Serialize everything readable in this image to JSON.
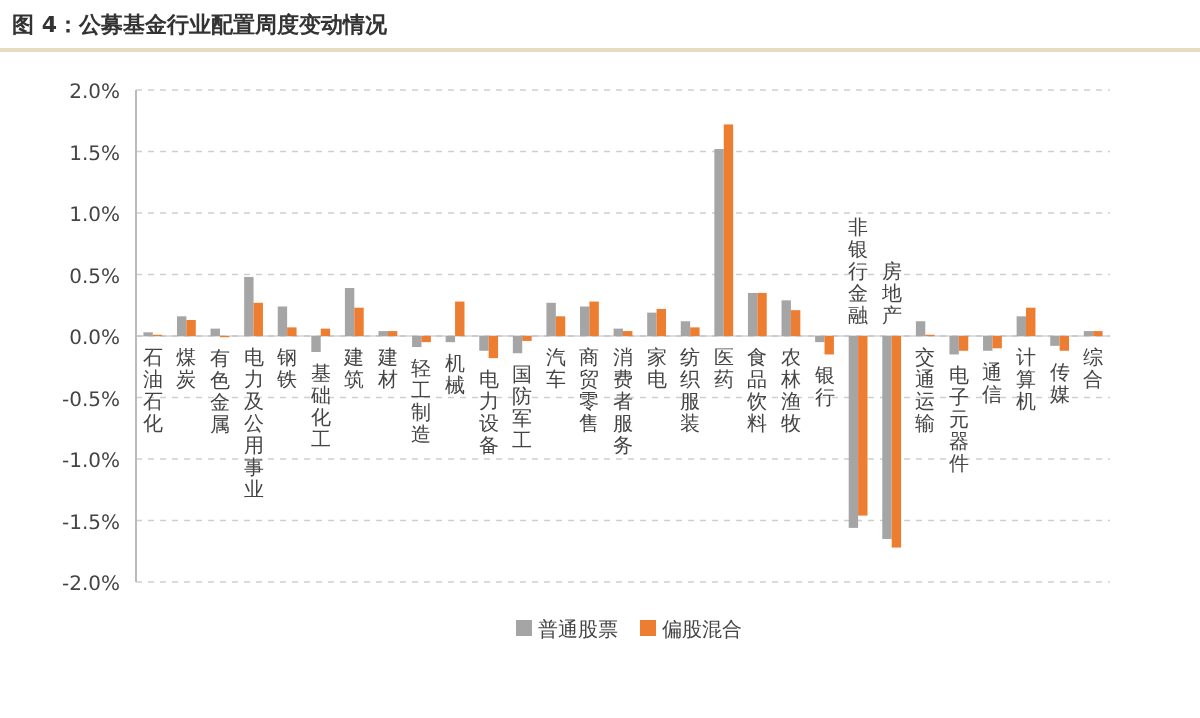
{
  "chart_data": {
    "type": "bar",
    "title": "图 4：公募基金行业配置周度变动情况",
    "categories": [
      "石油石化",
      "煤炭",
      "有色金属",
      "电力及公用事业",
      "钢铁",
      "基础化工",
      "建筑",
      "建材",
      "轻工制造",
      "机械",
      "电力设备",
      "国防军工",
      "汽车",
      "商贸零售",
      "消费者服务",
      "家电",
      "纺织服装",
      "医药",
      "食品饮料",
      "农林渔牧",
      "银行",
      "非银行金融",
      "房地产",
      "交通运输",
      "电子元器件",
      "通信",
      "计算机",
      "传媒",
      "综合"
    ],
    "series": [
      {
        "name": "普通股票",
        "color": "#a5a5a5",
        "values": [
          0.03,
          0.16,
          0.06,
          0.48,
          0.24,
          -0.13,
          0.39,
          0.04,
          -0.09,
          -0.05,
          -0.12,
          -0.14,
          0.27,
          0.24,
          0.06,
          0.19,
          0.12,
          1.52,
          0.35,
          0.29,
          -0.05,
          -1.56,
          -1.65,
          0.12,
          -0.15,
          -0.12,
          0.16,
          -0.08,
          0.04
        ]
      },
      {
        "name": "偏股混合",
        "color": "#ed7d31",
        "values": [
          0.01,
          0.13,
          -0.01,
          0.27,
          0.07,
          0.06,
          0.23,
          0.04,
          -0.05,
          0.28,
          -0.18,
          -0.04,
          0.16,
          0.28,
          0.04,
          0.22,
          0.07,
          1.72,
          0.35,
          0.21,
          -0.15,
          -1.46,
          -1.72,
          0.01,
          -0.12,
          -0.1,
          0.23,
          -0.12,
          0.04
        ]
      }
    ],
    "ylim": [
      -2,
      2
    ],
    "yticks": [
      {
        "value": -2,
        "label": "-2.0%"
      },
      {
        "value": -1.5,
        "label": "-1.5%"
      },
      {
        "value": -1,
        "label": "-1.0%"
      },
      {
        "value": -0.5,
        "label": "-0.5%"
      },
      {
        "value": 0,
        "label": "0.0%"
      },
      {
        "value": 0.5,
        "label": "0.5%"
      },
      {
        "value": 1,
        "label": "1.0%"
      },
      {
        "value": 1.5,
        "label": "1.5%"
      },
      {
        "value": 2,
        "label": "2.0%"
      }
    ],
    "grid": "y",
    "legend": "bottom"
  }
}
